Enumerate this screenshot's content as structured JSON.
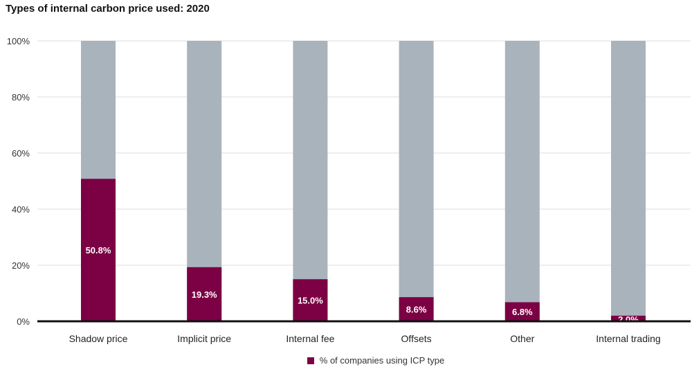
{
  "colors": {
    "primary": "#7b0044",
    "background_bar": "#a9b3bb",
    "gridline": "#dddddd",
    "axis": "#111111"
  },
  "chart_data": {
    "type": "bar",
    "title": "Types of internal carbon price used: 2020",
    "categories": [
      "Shadow price",
      "Implicit price",
      "Internal fee",
      "Offsets",
      "Other",
      "Internal trading"
    ],
    "series": [
      {
        "name": "% of companies using ICP type",
        "values": [
          50.8,
          19.3,
          15.0,
          8.6,
          6.8,
          2.0
        ],
        "data_labels": [
          "50.8%",
          "19.3%",
          "15.0%",
          "8.6%",
          "6.8%",
          "2.0%"
        ]
      }
    ],
    "background_bar_value": 100,
    "ylim": [
      0,
      100
    ],
    "yticks": [
      0,
      20,
      40,
      60,
      80,
      100
    ],
    "ytick_labels": [
      "0%",
      "20%",
      "40%",
      "60%",
      "80%",
      "100%"
    ],
    "xlabel": "",
    "ylabel": "",
    "grid": true,
    "legend_position": "bottom-center"
  }
}
